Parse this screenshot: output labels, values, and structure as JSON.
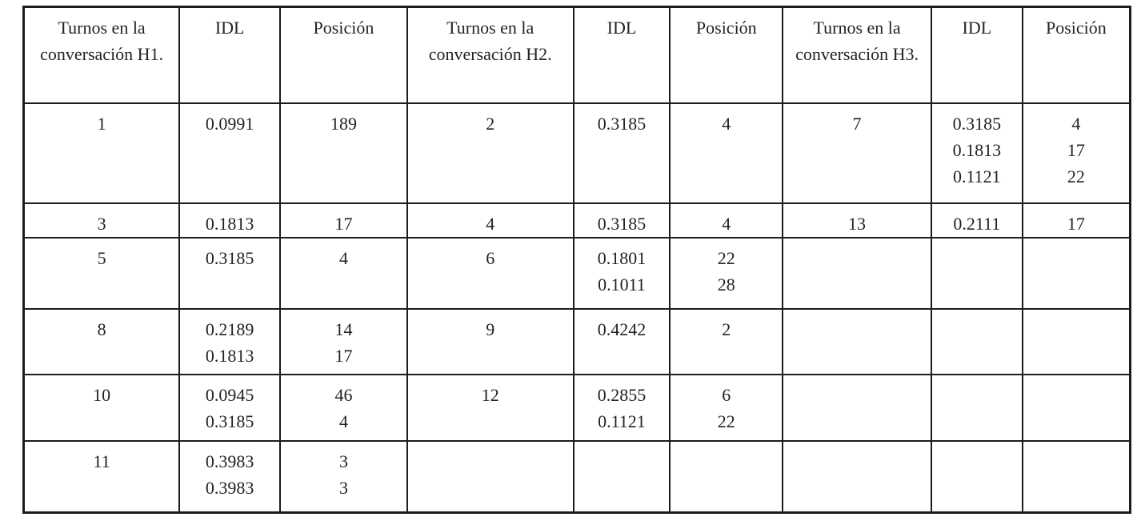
{
  "colors": {
    "background": "#ffffff",
    "border": "#1c1c1e",
    "text": "#232325"
  },
  "table": {
    "columns": [
      {
        "label": "Turnos en la conversación H1."
      },
      {
        "label": "IDL"
      },
      {
        "label": "Posición"
      },
      {
        "label": "Turnos en la conversación H2."
      },
      {
        "label": "IDL"
      },
      {
        "label": "Posición"
      },
      {
        "label": "Turnos en la conversación H3."
      },
      {
        "label": "IDL"
      },
      {
        "label": "Posición"
      }
    ],
    "rows": [
      [
        [
          "1"
        ],
        [
          "0.0991"
        ],
        [
          "189"
        ],
        [
          "2"
        ],
        [
          "0.3185"
        ],
        [
          "4"
        ],
        [
          "7"
        ],
        [
          "0.3185",
          "0.1813",
          "0.1121"
        ],
        [
          "4",
          "17",
          "22"
        ]
      ],
      [
        [
          "3"
        ],
        [
          "0.1813"
        ],
        [
          "17"
        ],
        [
          "4"
        ],
        [
          "0.3185"
        ],
        [
          "4"
        ],
        [
          "13"
        ],
        [
          "0.2111"
        ],
        [
          "17"
        ]
      ],
      [
        [
          "5"
        ],
        [
          "0.3185"
        ],
        [
          "4"
        ],
        [
          "6"
        ],
        [
          "0.1801",
          "0.1011"
        ],
        [
          "22",
          "28"
        ],
        [],
        [],
        []
      ],
      [
        [
          "8"
        ],
        [
          "0.2189",
          "0.1813"
        ],
        [
          "14",
          "17"
        ],
        [
          "9"
        ],
        [
          "0.4242"
        ],
        [
          "2"
        ],
        [],
        [],
        []
      ],
      [
        [
          "10"
        ],
        [
          "0.0945",
          "0.3185"
        ],
        [
          "46",
          "4"
        ],
        [
          "12"
        ],
        [
          "0.2855",
          "0.1121"
        ],
        [
          "6",
          "22"
        ],
        [],
        [],
        []
      ],
      [
        [
          "11"
        ],
        [
          "0.3983",
          "0.3983"
        ],
        [
          "3",
          "3"
        ],
        [],
        [],
        [],
        [],
        [],
        []
      ]
    ]
  }
}
